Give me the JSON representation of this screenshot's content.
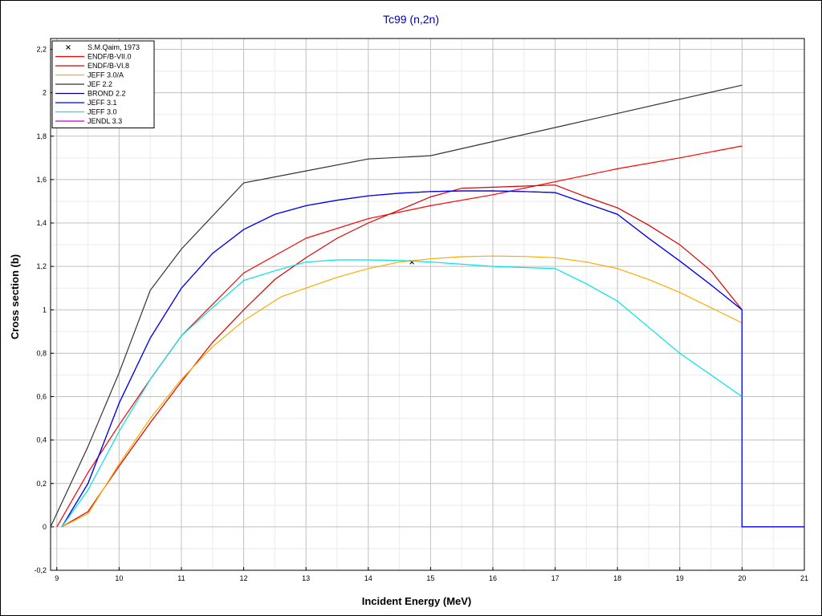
{
  "chart_data": {
    "type": "line",
    "title": "Tc99 (n,2n)",
    "xlabel": "Incident Energy (MeV)",
    "ylabel": "Cross section (b)",
    "xlim": [
      8.9,
      21
    ],
    "ylim": [
      -0.2,
      2.25
    ],
    "x_ticks": [
      9,
      10,
      11,
      12,
      13,
      14,
      15,
      16,
      17,
      18,
      19,
      20,
      21
    ],
    "x_tick_labels": [
      "9",
      "10",
      "11",
      "12",
      "13",
      "14",
      "15",
      "16",
      "17",
      "18",
      "19",
      "20",
      "21"
    ],
    "y_ticks": [
      -0.2,
      0,
      0.2,
      0.4,
      0.6,
      0.8,
      1,
      1.2,
      1.4,
      1.6,
      1.8,
      2,
      2.2
    ],
    "y_tick_labels": [
      "-0,2",
      "0",
      "0,2",
      "0,4",
      "0,6",
      "0,8",
      "1",
      "1,2",
      "1,4",
      "1,6",
      "1,8",
      "2",
      "2,2"
    ],
    "grid": true,
    "legend_position": "top-left",
    "series": [
      {
        "name": "S.M.Qaim, 1973",
        "kind": "marker",
        "color": "#000000",
        "x": [
          14.7
        ],
        "y": [
          1.22
        ]
      },
      {
        "name": "ENDF/B-VII.0",
        "color": "#ff0000",
        "x": [
          9.0,
          9.5,
          10.0,
          10.5,
          11.0,
          12.0,
          13.0,
          14.0,
          15.0,
          16.0,
          17.0,
          18.0,
          19.0,
          20.0
        ],
        "y": [
          0.0,
          0.25,
          0.47,
          0.68,
          0.88,
          1.17,
          1.33,
          1.42,
          1.48,
          1.53,
          1.59,
          1.65,
          1.7,
          1.755
        ]
      },
      {
        "name": "ENDF/B-VI.8",
        "color": "#dd0000",
        "x": [
          9.08,
          9.5,
          10.0,
          10.5,
          11.0,
          11.5,
          12.0,
          12.5,
          13.0,
          13.5,
          14.0,
          14.5,
          15.0,
          15.5,
          16.0,
          16.5,
          17.0,
          17.5,
          18.0,
          18.5,
          19.0,
          19.5,
          20.0
        ],
        "y": [
          0.0,
          0.07,
          0.28,
          0.48,
          0.67,
          0.85,
          1.0,
          1.14,
          1.24,
          1.33,
          1.4,
          1.46,
          1.52,
          1.56,
          1.565,
          1.57,
          1.575,
          1.52,
          1.47,
          1.39,
          1.3,
          1.18,
          1.0
        ]
      },
      {
        "name": "JEFF 3.0/A",
        "color": "#ffaa00",
        "x": [
          9.08,
          9.5,
          10.0,
          10.5,
          11.0,
          11.5,
          12.0,
          12.6,
          13.0,
          13.5,
          14.0,
          14.5,
          15.0,
          15.5,
          16.0,
          16.5,
          17.0,
          17.5,
          18.0,
          18.5,
          19.0,
          19.5,
          20.0
        ],
        "y": [
          0.0,
          0.06,
          0.29,
          0.5,
          0.68,
          0.83,
          0.95,
          1.06,
          1.1,
          1.15,
          1.19,
          1.22,
          1.235,
          1.245,
          1.248,
          1.246,
          1.24,
          1.22,
          1.19,
          1.14,
          1.08,
          1.01,
          0.94
        ]
      },
      {
        "name": "JEF 2.2",
        "color": "#333333",
        "x": [
          8.9,
          9.5,
          10.0,
          10.5,
          11.0,
          12.0,
          13.0,
          14.0,
          15.0,
          16.0,
          17.0,
          18.0,
          19.0,
          20.0
        ],
        "y": [
          0.0,
          0.37,
          0.71,
          1.09,
          1.28,
          1.585,
          1.64,
          1.695,
          1.71,
          1.775,
          1.84,
          1.905,
          1.97,
          2.035
        ]
      },
      {
        "name": "BROND 2.2",
        "color": "#000080",
        "x": [
          9.08,
          9.5,
          10.0,
          10.5,
          11.0,
          11.5,
          12.0,
          12.5,
          13.0,
          13.5,
          14.0,
          14.5,
          15.0,
          15.5,
          16.0,
          16.5,
          17.0,
          17.5,
          18.0,
          18.5,
          19.0,
          19.5,
          20.0,
          20.0,
          21.0
        ],
        "y": [
          0.0,
          0.2,
          0.57,
          0.87,
          1.1,
          1.26,
          1.37,
          1.44,
          1.48,
          1.505,
          1.525,
          1.537,
          1.545,
          1.548,
          1.548,
          1.545,
          1.54,
          1.49,
          1.44,
          1.33,
          1.225,
          1.115,
          1.0,
          0.0,
          0.0
        ]
      },
      {
        "name": "JEFF 3.1",
        "color": "#0000ff",
        "x": [
          9.08,
          9.5,
          10.0,
          10.5,
          11.0,
          11.5,
          12.0,
          12.5,
          13.0,
          13.5,
          14.0,
          14.5,
          15.0,
          15.5,
          16.0,
          16.5,
          17.0,
          17.5,
          18.0,
          18.5,
          19.0,
          19.5,
          20.0,
          20.0,
          21.0
        ],
        "y": [
          0.0,
          0.2,
          0.57,
          0.87,
          1.1,
          1.26,
          1.37,
          1.44,
          1.48,
          1.505,
          1.525,
          1.537,
          1.545,
          1.548,
          1.548,
          1.545,
          1.54,
          1.49,
          1.44,
          1.33,
          1.225,
          1.115,
          1.0,
          0.0,
          0.0
        ]
      },
      {
        "name": "JEFF 3.0",
        "color": "#00e5e5",
        "x": [
          9.08,
          9.5,
          10.0,
          10.5,
          11.0,
          11.5,
          12.0,
          12.5,
          13.0,
          13.5,
          14.0,
          14.5,
          15.0,
          15.5,
          16.0,
          16.5,
          17.0,
          17.5,
          18.0,
          18.5,
          19.0,
          19.5,
          20.0
        ],
        "y": [
          0.0,
          0.17,
          0.44,
          0.68,
          0.88,
          1.01,
          1.135,
          1.18,
          1.22,
          1.23,
          1.23,
          1.228,
          1.22,
          1.21,
          1.2,
          1.195,
          1.19,
          1.12,
          1.04,
          0.92,
          0.8,
          0.7,
          0.6
        ]
      },
      {
        "name": "JENDL 3.3",
        "color": "#cc00cc",
        "x": [
          20.0,
          20.0
        ],
        "y": [
          1.0,
          1.0
        ]
      }
    ]
  }
}
